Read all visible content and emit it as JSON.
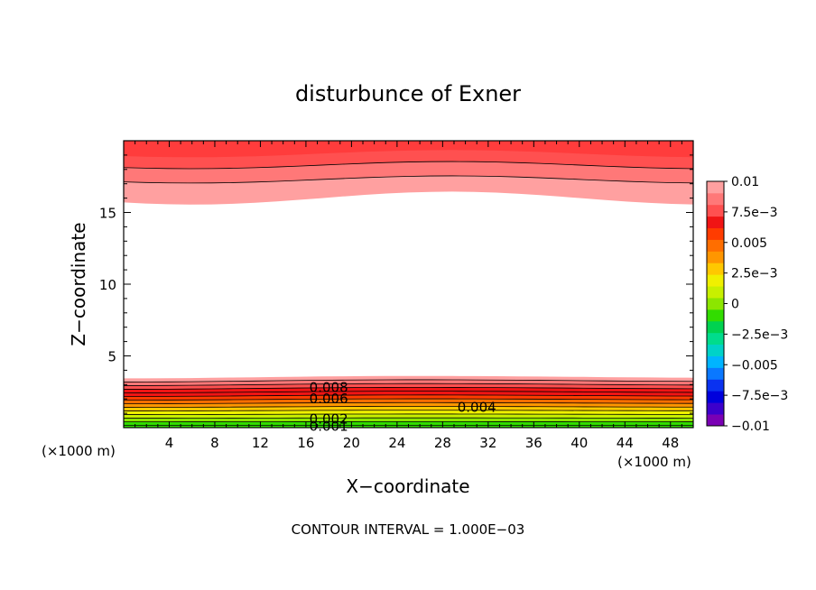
{
  "chart_data": {
    "type": "heatmap",
    "title": "disturbunce of Exner",
    "xlabel": "X−coordinate",
    "ylabel": "Z−coordinate",
    "x_unit_left": "(×1000 m)",
    "x_unit_right": "(×1000 m)",
    "xlim": [
      0,
      50
    ],
    "ylim": [
      0,
      20
    ],
    "x_ticks": [
      4,
      8,
      12,
      16,
      20,
      24,
      28,
      32,
      36,
      40,
      44,
      48
    ],
    "y_ticks": [
      5,
      10,
      15
    ],
    "colorbar": {
      "range": [
        -0.01,
        0.01
      ],
      "labels": [
        {
          "value": 0.01,
          "text": "0.01"
        },
        {
          "value": 0.0075,
          "text": "7.5e−3"
        },
        {
          "value": 0.005,
          "text": "0.005"
        },
        {
          "value": 0.0025,
          "text": "2.5e−3"
        },
        {
          "value": 0,
          "text": "0"
        },
        {
          "value": -0.0025,
          "text": "−2.5e−3"
        },
        {
          "value": -0.005,
          "text": "−0.005"
        },
        {
          "value": -0.0075,
          "text": "−7.5e−3"
        },
        {
          "value": -0.01,
          "text": "−0.01"
        }
      ],
      "colors": [
        "#7a00b4",
        "#3c00cc",
        "#0000dc",
        "#0a32f0",
        "#0a78ff",
        "#00b4ff",
        "#00d2c8",
        "#00dc8c",
        "#00d250",
        "#32dc00",
        "#8ce600",
        "#c8f000",
        "#f0f000",
        "#ffc800",
        "#ff9600",
        "#ff6e00",
        "#ff3c00",
        "#f01414",
        "#ff5050",
        "#ff7878",
        "#ffa0a0"
      ]
    },
    "contour_labels": [
      {
        "text": "0.008",
        "x": 18,
        "y": 2.8
      },
      {
        "text": "0.006",
        "x": 18,
        "y": 2.0
      },
      {
        "text": "0.004",
        "x": 31,
        "y": 1.4
      },
      {
        "text": "0.002",
        "x": 18,
        "y": 0.6
      },
      {
        "text": "0.001",
        "x": 18,
        "y": 0.1
      }
    ],
    "contour_interval_text": "CONTOUR INTERVAL = 1.000E−03"
  }
}
